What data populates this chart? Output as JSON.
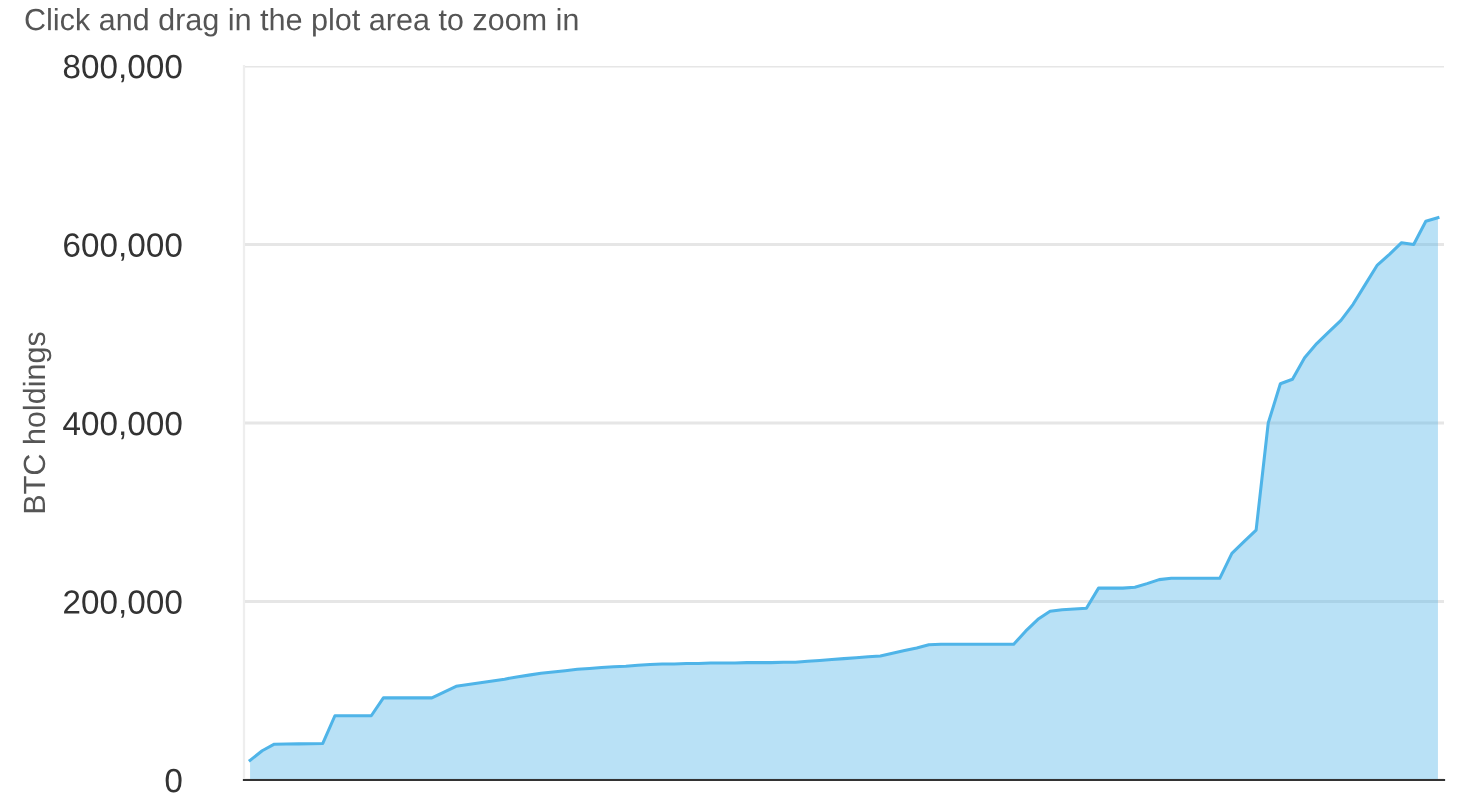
{
  "chart_data": {
    "type": "area",
    "ylabel": "BTC holdings",
    "annotations": [
      "Click and drag in the plot area to zoom in"
    ],
    "categories": [
      null,
      null,
      null,
      null,
      null,
      null,
      null,
      null,
      null,
      null,
      null,
      null,
      null,
      null,
      null,
      null,
      null,
      null,
      null,
      null,
      null,
      null,
      null,
      null,
      null,
      null,
      null,
      null,
      null,
      null,
      null,
      null,
      null,
      null,
      null,
      null,
      null,
      null,
      null,
      null,
      null,
      null,
      null,
      null,
      null,
      null,
      null,
      null,
      null,
      null,
      null,
      null,
      null,
      null,
      null,
      null,
      null,
      null,
      null,
      null,
      null,
      null,
      null,
      null,
      null,
      null,
      null,
      null,
      null,
      null,
      null,
      null,
      null,
      null,
      null,
      null,
      null,
      null,
      null,
      null,
      null,
      null,
      null,
      null,
      null,
      null,
      null,
      null,
      null,
      null,
      null,
      null,
      null,
      null,
      null,
      null,
      null,
      null,
      null
    ],
    "series": [
      {
        "color": "#4fb4e8",
        "values": [
          22000,
          32800,
          40100,
          40300,
          40500,
          40700,
          41000,
          72000,
          72000,
          72000,
          72000,
          92000,
          92000,
          92000,
          92000,
          92000,
          98500,
          105000,
          107000,
          109000,
          111000,
          113000,
          115500,
          117500,
          119500,
          121000,
          122500,
          124000,
          125000,
          126000,
          127000,
          127500,
          128500,
          129500,
          130000,
          130000,
          130500,
          130500,
          131000,
          131000,
          131000,
          131500,
          131500,
          131500,
          132000,
          132000,
          133000,
          134000,
          135000,
          136000,
          137000,
          138000,
          139000,
          142000,
          145000,
          148000,
          151500,
          152000,
          152000,
          152000,
          152000,
          152000,
          152000,
          152000,
          167000,
          180000,
          189000,
          190800,
          191700,
          192500,
          215000,
          215000,
          215000,
          216000,
          220000,
          224500,
          226000,
          226000,
          226000,
          226000,
          226000,
          254000,
          267000,
          280000,
          400000,
          444000,
          449000,
          473000,
          489000,
          502000,
          515000,
          533000,
          555000,
          577000,
          589000,
          602000,
          600000,
          626000,
          630000
        ]
      }
    ],
    "ylim": [
      0,
      800000
    ],
    "yticks": [
      {
        "value": 0,
        "label": "0"
      },
      {
        "value": 200000,
        "label": "200,000"
      },
      {
        "value": 400000,
        "label": "400,000"
      },
      {
        "value": 600000,
        "label": "600,000"
      },
      {
        "value": 800000,
        "label": "800,000"
      }
    ],
    "grid": "y"
  }
}
